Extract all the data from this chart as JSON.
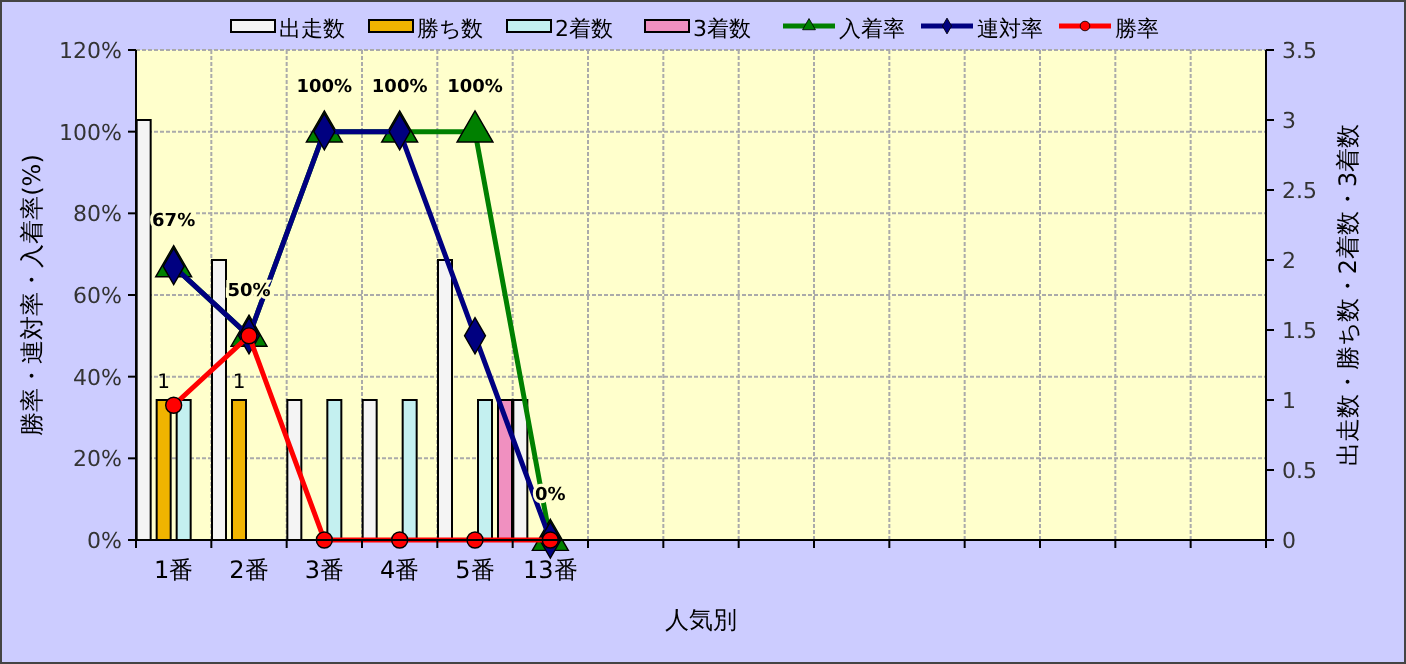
{
  "chart_data": {
    "type": "bar",
    "xlabel": "人気別",
    "ylabel": "勝率・連対率・入着率(%)",
    "y2label": "出走数・勝ち数・2着数・3着数",
    "categories": [
      "1番",
      "2番",
      "3番",
      "4番",
      "5番",
      "13番",
      null,
      null,
      null,
      null,
      null,
      null,
      null,
      null,
      null
    ],
    "ylim": [
      0,
      120
    ],
    "yticks": [
      {
        "value": 0,
        "label": "0%"
      },
      {
        "value": 20,
        "label": "20%"
      },
      {
        "value": 40,
        "label": "40%"
      },
      {
        "value": 60,
        "label": "60%"
      },
      {
        "value": 80,
        "label": "80%"
      },
      {
        "value": 100,
        "label": "100%"
      },
      {
        "value": 120,
        "label": "120%"
      }
    ],
    "y2lim": [
      0,
      3.5
    ],
    "y2ticks": [
      0,
      0.5,
      1,
      1.5,
      2,
      2.5,
      3,
      3.5
    ],
    "grid": true,
    "legend": "top",
    "series": [
      {
        "name": "出走数",
        "axis": "y2",
        "color": "#f4f4f4",
        "values": [
          3,
          2,
          1,
          1,
          2,
          1,
          null,
          null,
          null,
          null,
          null,
          null,
          null,
          null,
          null
        ]
      },
      {
        "name": "勝ち数",
        "axis": "y2",
        "color": "#f0b400",
        "values": [
          1,
          1,
          0,
          0,
          0,
          0,
          null,
          null,
          null,
          null,
          null,
          null,
          null,
          null,
          null
        ],
        "value_labels": [
          "1",
          "1",
          null,
          null,
          null,
          null,
          null,
          null,
          null,
          null,
          null,
          null,
          null,
          null,
          null
        ]
      },
      {
        "name": "2着数",
        "axis": "y2",
        "color": "#c4f0f0",
        "values": [
          1,
          0,
          1,
          1,
          1,
          0,
          null,
          null,
          null,
          null,
          null,
          null,
          null,
          null,
          null
        ]
      },
      {
        "name": "3着数",
        "axis": "y2",
        "color": "#f090c0",
        "values": [
          0,
          0,
          0,
          0,
          1,
          0,
          null,
          null,
          null,
          null,
          null,
          null,
          null,
          null,
          null
        ]
      },
      {
        "name": "入着率",
        "type": "line",
        "color": "#008000",
        "marker": "triangle",
        "values": [
          67,
          50,
          100,
          100,
          100,
          0,
          null,
          null,
          null,
          null,
          null,
          null,
          null,
          null,
          null
        ],
        "value_labels": [
          "67%",
          "50%",
          "100%",
          "100%",
          "100%",
          "0%",
          null,
          null,
          null,
          null,
          null,
          null,
          null,
          null,
          null
        ]
      },
      {
        "name": "連対率",
        "type": "line",
        "color": "#000080",
        "marker": "diamond",
        "values": [
          67,
          50,
          100,
          100,
          50,
          0,
          null,
          null,
          null,
          null,
          null,
          null,
          null,
          null,
          null
        ]
      },
      {
        "name": "勝率",
        "type": "line",
        "color": "#ff0000",
        "marker": "circle",
        "values": [
          33,
          50,
          0,
          0,
          0,
          0,
          null,
          null,
          null,
          null,
          null,
          null,
          null,
          null,
          null
        ]
      }
    ]
  }
}
